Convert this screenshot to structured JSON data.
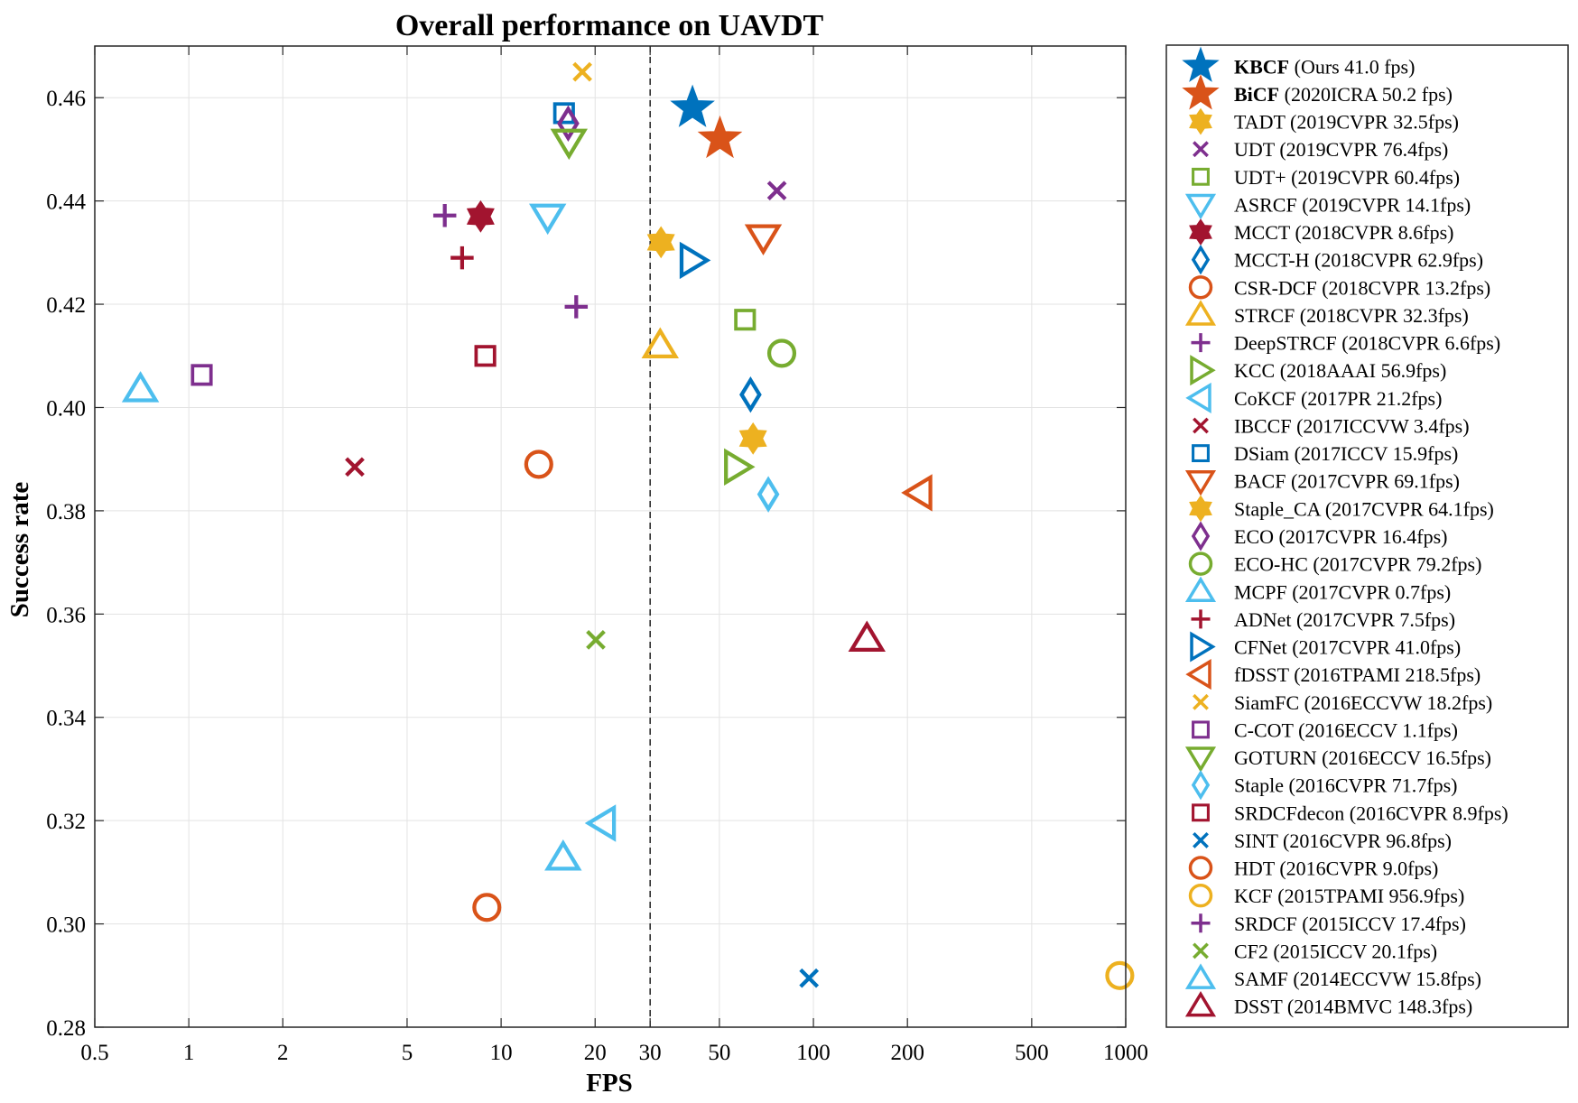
{
  "chart_data": {
    "type": "scatter",
    "title": "Overall performance on UAVDT",
    "xlabel": "FPS",
    "ylabel": "Success rate",
    "x_scale": "log",
    "xlim": [
      0.5,
      1000
    ],
    "ylim": [
      0.28,
      0.47
    ],
    "x_ticks": [
      0.5,
      1,
      2,
      5,
      10,
      20,
      30,
      50,
      100,
      200,
      500,
      1000
    ],
    "x_tick_labels": [
      "0.5",
      "1",
      "2",
      "5",
      "10",
      "20",
      "30",
      "50",
      "100",
      "200",
      "500",
      "1000"
    ],
    "y_ticks": [
      0.28,
      0.3,
      0.32,
      0.34,
      0.36,
      0.38,
      0.4,
      0.42,
      0.44,
      0.46
    ],
    "y_tick_labels": [
      "0.28",
      "0.30",
      "0.32",
      "0.34",
      "0.36",
      "0.38",
      "0.40",
      "0.42",
      "0.44",
      "0.46"
    ],
    "reference_line_x": 30,
    "grid": true,
    "legend_position": "outside-right",
    "series": [
      {
        "name": "KBCF",
        "note": "(Ours 41.0 fps)",
        "bold": true,
        "x": 41.0,
        "y": 0.458,
        "marker": "star",
        "color": "#0072bd"
      },
      {
        "name": "BiCF",
        "note": "(2020ICRA 50.2 fps)",
        "bold": true,
        "x": 50.2,
        "y": 0.452,
        "marker": "star",
        "color": "#d95319"
      },
      {
        "name": "TADT",
        "note": "(2019CVPR 32.5fps)",
        "x": 32.5,
        "y": 0.432,
        "marker": "hexagram",
        "color": "#edb120"
      },
      {
        "name": "UDT",
        "note": "(2019CVPR 76.4fps)",
        "x": 76.4,
        "y": 0.442,
        "marker": "x",
        "color": "#7e2f8e"
      },
      {
        "name": "UDT+",
        "note": "(2019CVPR 60.4fps)",
        "x": 60.4,
        "y": 0.417,
        "marker": "square",
        "color": "#77ac30"
      },
      {
        "name": "ASRCF",
        "note": "(2019CVPR 14.1fps)",
        "x": 14.1,
        "y": 0.437,
        "marker": "triangle-down",
        "color": "#4dbeee"
      },
      {
        "name": "MCCT",
        "note": "(2018CVPR 8.6fps)",
        "x": 8.6,
        "y": 0.437,
        "marker": "hexagram",
        "color": "#a2142f"
      },
      {
        "name": "MCCT-H",
        "note": "(2018CVPR 62.9fps)",
        "x": 62.9,
        "y": 0.4025,
        "marker": "diamond",
        "color": "#0072bd"
      },
      {
        "name": "CSR-DCF",
        "note": "(2018CVPR 13.2fps)",
        "x": 13.2,
        "y": 0.389,
        "marker": "circle",
        "color": "#d95319"
      },
      {
        "name": "STRCF",
        "note": "(2018CVPR 32.3fps)",
        "x": 32.3,
        "y": 0.412,
        "marker": "triangle-up",
        "color": "#edb120"
      },
      {
        "name": "DeepSTRCF",
        "note": "(2018CVPR 6.6fps)",
        "x": 6.6,
        "y": 0.4372,
        "marker": "plus",
        "color": "#7e2f8e"
      },
      {
        "name": "KCC",
        "note": "(2018AAAI 56.9fps)",
        "x": 56.9,
        "y": 0.3885,
        "marker": "triangle-right",
        "color": "#77ac30"
      },
      {
        "name": "CoKCF",
        "note": "(2017PR 21.2fps)",
        "x": 21.2,
        "y": 0.3195,
        "marker": "triangle-left",
        "color": "#4dbeee"
      },
      {
        "name": "IBCCF",
        "note": "(2017ICCVW 3.4fps)",
        "x": 3.4,
        "y": 0.3885,
        "marker": "x",
        "color": "#a2142f"
      },
      {
        "name": "DSiam",
        "note": "(2017ICCV 15.9fps)",
        "x": 15.9,
        "y": 0.457,
        "marker": "square",
        "color": "#0072bd"
      },
      {
        "name": "BACF",
        "note": "(2017CVPR 69.1fps)",
        "x": 69.1,
        "y": 0.433,
        "marker": "triangle-down",
        "color": "#d95319"
      },
      {
        "name": "Staple_CA",
        "note": "(2017CVPR 64.1fps)",
        "x": 64.1,
        "y": 0.394,
        "marker": "hexagram",
        "color": "#edb120"
      },
      {
        "name": "ECO",
        "note": "(2017CVPR 16.4fps)",
        "x": 16.4,
        "y": 0.455,
        "marker": "diamond",
        "color": "#7e2f8e"
      },
      {
        "name": "ECO-HC",
        "note": "(2017CVPR 79.2fps)",
        "x": 79.2,
        "y": 0.4105,
        "marker": "circle",
        "color": "#77ac30"
      },
      {
        "name": "MCPF",
        "note": "(2017CVPR 0.7fps)",
        "x": 0.7,
        "y": 0.4035,
        "marker": "triangle-up",
        "color": "#4dbeee"
      },
      {
        "name": "ADNet",
        "note": "(2017CVPR 7.5fps)",
        "x": 7.5,
        "y": 0.429,
        "marker": "plus",
        "color": "#a2142f"
      },
      {
        "name": "CFNet",
        "note": "(2017CVPR 41.0fps)",
        "x": 41.0,
        "y": 0.4285,
        "marker": "triangle-right",
        "color": "#0072bd"
      },
      {
        "name": "fDSST",
        "note": "(2016TPAMI 218.5fps)",
        "x": 218.5,
        "y": 0.3835,
        "marker": "triangle-left",
        "color": "#d95319"
      },
      {
        "name": "SiamFC",
        "note": "(2016ECCVW 18.2fps)",
        "x": 18.2,
        "y": 0.465,
        "marker": "x",
        "color": "#edb120"
      },
      {
        "name": "C-COT",
        "note": "(2016ECCV 1.1fps)",
        "x": 1.1,
        "y": 0.4063,
        "marker": "square",
        "color": "#7e2f8e"
      },
      {
        "name": "GOTURN",
        "note": "(2016ECCV 16.5fps)",
        "x": 16.5,
        "y": 0.4515,
        "marker": "triangle-down",
        "color": "#77ac30"
      },
      {
        "name": "Staple",
        "note": "(2016CVPR 71.7fps)",
        "x": 71.7,
        "y": 0.3832,
        "marker": "diamond",
        "color": "#4dbeee"
      },
      {
        "name": "SRDCFdecon",
        "note": "(2016CVPR 8.9fps)",
        "x": 8.9,
        "y": 0.41,
        "marker": "square",
        "color": "#a2142f"
      },
      {
        "name": "SINT",
        "note": "(2016CVPR 96.8fps)",
        "x": 96.8,
        "y": 0.2895,
        "marker": "x",
        "color": "#0072bd"
      },
      {
        "name": "HDT",
        "note": "(2016CVPR 9.0fps)",
        "x": 9.0,
        "y": 0.3032,
        "marker": "circle",
        "color": "#d95319"
      },
      {
        "name": "KCF",
        "note": "(2015TPAMI 956.9fps)",
        "x": 956.9,
        "y": 0.29,
        "marker": "circle",
        "color": "#edb120"
      },
      {
        "name": "SRDCF",
        "note": "(2015ICCV 17.4fps)",
        "x": 17.4,
        "y": 0.4195,
        "marker": "plus",
        "color": "#7e2f8e"
      },
      {
        "name": "CF2",
        "note": "(2015ICCV 20.1fps)",
        "x": 20.1,
        "y": 0.355,
        "marker": "x",
        "color": "#77ac30"
      },
      {
        "name": "SAMF",
        "note": "(2014ECCVW 15.8fps)",
        "x": 15.8,
        "y": 0.3128,
        "marker": "triangle-up",
        "color": "#4dbeee"
      },
      {
        "name": "DSST",
        "note": "(2014BMVC 148.3fps)",
        "x": 148.3,
        "y": 0.3552,
        "marker": "triangle-up",
        "color": "#a2142f"
      }
    ]
  }
}
